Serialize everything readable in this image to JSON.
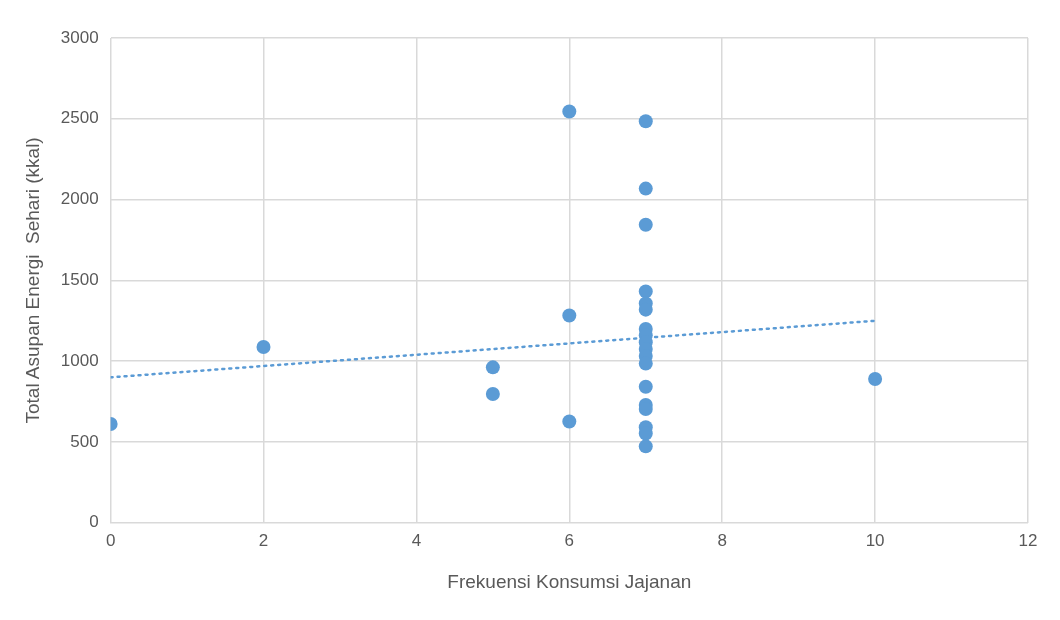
{
  "chart_data": {
    "type": "scatter",
    "xlabel": "Frekuensi Konsumsi Jajanan",
    "ylabel": "Total Asupan Energi  Sehari (kkal)",
    "xlim": [
      0,
      12
    ],
    "xticks": [
      0,
      2,
      4,
      6,
      8,
      10,
      12
    ],
    "ylim": [
      0,
      3000
    ],
    "yticks": [
      0,
      500,
      1000,
      1500,
      2000,
      2500,
      3000
    ],
    "grid": true,
    "legend": false,
    "marker": "circle",
    "series": [
      {
        "type": "scatter",
        "color": "#5b9bd5",
        "x": [
          0,
          2,
          5,
          5,
          6,
          6,
          6,
          7,
          7,
          7,
          7,
          7,
          7,
          7,
          7,
          7,
          7,
          7,
          7,
          7,
          7,
          7,
          7,
          7,
          7,
          10
        ],
        "values": [
          611,
          1088,
          962,
          797,
          2545,
          1283,
          627,
          2485,
          2068,
          1844,
          1432,
          1357,
          1319,
          1200,
          1160,
          1118,
          1076,
          1032,
          985,
          842,
          729,
          704,
          591,
          553,
          473,
          890
        ]
      },
      {
        "type": "line",
        "color": "#5b9bd5",
        "line_style": "dotted",
        "marker": "none",
        "x": [
          0,
          10
        ],
        "values": [
          900,
          1250
        ]
      }
    ]
  }
}
